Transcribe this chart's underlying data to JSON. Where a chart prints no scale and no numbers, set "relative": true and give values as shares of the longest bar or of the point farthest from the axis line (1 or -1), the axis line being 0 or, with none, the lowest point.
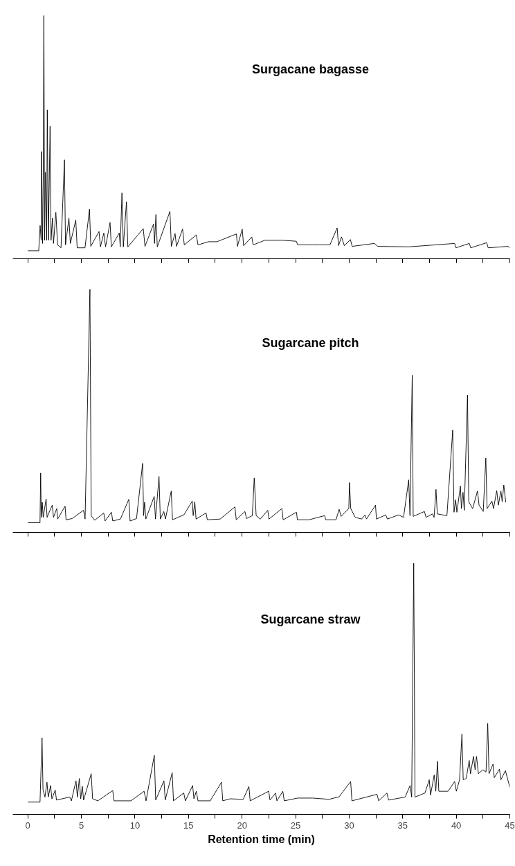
{
  "chart_data": [
    {
      "type": "line",
      "title": "Surgacane bagasse",
      "relative": true,
      "grid": false,
      "tick_labels": false,
      "marker": "none",
      "line_style": "solid",
      "xlim": [
        -1.4,
        45
      ],
      "xticks": [
        0,
        2.5,
        5,
        7.5,
        10,
        12.5,
        15,
        17.5,
        20,
        22.5,
        25,
        27.5,
        30,
        32.5,
        35,
        37.5,
        40,
        42.5,
        45
      ],
      "series": [
        {
          "color": "#000000",
          "x": [
            0,
            1.02,
            1.15,
            1.25,
            1.28,
            1.38,
            1.44,
            1.5,
            1.57,
            1.63,
            1.76,
            1.82,
            1.92,
            2.08,
            2.17,
            2.3,
            2.4,
            2.62,
            2.78,
            3.1,
            3.42,
            3.52,
            3.84,
            3.97,
            4.48,
            4.61,
            5.34,
            5.76,
            5.88,
            6.65,
            6.78,
            7.1,
            7.26,
            7.68,
            7.8,
            8.54,
            8.63,
            8.79,
            8.92,
            9.21,
            9.34,
            10.78,
            10.94,
            11.74,
            11.83,
            11.96,
            12.09,
            13.27,
            13.4,
            13.75,
            13.88,
            14.45,
            14.61,
            15.73,
            15.89,
            16.85,
            17.65,
            19.48,
            19.57,
            20.02,
            20.15,
            20.91,
            21.04,
            22.13,
            23.79,
            25.07,
            25.2,
            27.25,
            28.21,
            28.88,
            29.01,
            29.29,
            29.55,
            30.12,
            30.28,
            32.36,
            32.68,
            35.56,
            39.85,
            39.97,
            41.22,
            41.35,
            42.85,
            42.98,
            44.84,
            45.0
          ],
          "values": [
            0.033,
            0.033,
            0.137,
            0.076,
            0.441,
            0.063,
            0.332,
            1.0,
            0.076,
            0.356,
            0.076,
            0.612,
            0.076,
            0.545,
            0.076,
            0.167,
            0.063,
            0.191,
            0.057,
            0.045,
            0.407,
            0.057,
            0.167,
            0.063,
            0.159,
            0.045,
            0.045,
            0.204,
            0.051,
            0.112,
            0.049,
            0.106,
            0.049,
            0.149,
            0.049,
            0.106,
            0.049,
            0.271,
            0.049,
            0.234,
            0.049,
            0.124,
            0.051,
            0.143,
            0.063,
            0.182,
            0.049,
            0.195,
            0.051,
            0.104,
            0.051,
            0.122,
            0.057,
            0.098,
            0.057,
            0.07,
            0.07,
            0.102,
            0.051,
            0.122,
            0.054,
            0.09,
            0.057,
            0.076,
            0.076,
            0.072,
            0.057,
            0.057,
            0.057,
            0.127,
            0.054,
            0.09,
            0.054,
            0.079,
            0.051,
            0.063,
            0.051,
            0.049,
            0.063,
            0.045,
            0.063,
            0.045,
            0.066,
            0.045,
            0.051,
            0.045
          ]
        }
      ]
    },
    {
      "type": "line",
      "title": "Sugarcane pitch",
      "relative": true,
      "grid": false,
      "tick_labels": false,
      "marker": "none",
      "line_style": "solid",
      "xlim": [
        -1.4,
        45
      ],
      "xticks": [
        0,
        2.5,
        5,
        7.5,
        10,
        12.5,
        15,
        17.5,
        20,
        22.5,
        25,
        27.5,
        30,
        32.5,
        35,
        37.5,
        40,
        42.5,
        45
      ],
      "series": [
        {
          "color": "#000000",
          "x": [
            0,
            1.14,
            1.2,
            1.26,
            1.35,
            1.44,
            1.71,
            1.8,
            2.28,
            2.4,
            2.7,
            2.79,
            3.48,
            3.57,
            4.14,
            5.2,
            5.35,
            5.8,
            5.92,
            6.25,
            7.09,
            7.21,
            7.81,
            7.93,
            8.65,
            9.43,
            9.55,
            10.15,
            10.72,
            10.81,
            10.9,
            11.02,
            11.8,
            11.92,
            12.25,
            12.37,
            12.7,
            12.85,
            13.39,
            13.51,
            14.59,
            15.35,
            15.44,
            15.59,
            15.71,
            16.64,
            16.76,
            17.96,
            19.34,
            19.46,
            20.27,
            20.42,
            20.96,
            21.14,
            21.32,
            21.71,
            22.4,
            22.52,
            23.72,
            23.84,
            25.08,
            25.17,
            26.25,
            27.72,
            27.81,
            28.77,
            29.07,
            29.25,
            29.97,
            30.03,
            30.15,
            30.57,
            31.17,
            31.47,
            31.62,
            32.46,
            32.55,
            33.42,
            33.57,
            34.62,
            35.08,
            35.56,
            35.68,
            35.89,
            35.98,
            37.03,
            37.18,
            37.78,
            37.93,
            38.11,
            38.23,
            39.13,
            39.67,
            39.79,
            39.94,
            40.06,
            40.39,
            40.48,
            40.63,
            40.75,
            41.05,
            41.17,
            41.53,
            41.98,
            42.13,
            42.52,
            42.76,
            42.88,
            43.33,
            43.48,
            43.78,
            43.93,
            44.17,
            44.29,
            44.44,
            44.62
          ],
          "values": [
            0.04,
            0.04,
            0.244,
            0.062,
            0.124,
            0.062,
            0.138,
            0.062,
            0.112,
            0.062,
            0.098,
            0.055,
            0.108,
            0.052,
            0.057,
            0.091,
            0.055,
            1.0,
            0.069,
            0.05,
            0.08,
            0.047,
            0.083,
            0.047,
            0.055,
            0.136,
            0.047,
            0.057,
            0.284,
            0.069,
            0.124,
            0.055,
            0.148,
            0.055,
            0.23,
            0.055,
            0.086,
            0.055,
            0.17,
            0.052,
            0.073,
            0.129,
            0.069,
            0.126,
            0.055,
            0.08,
            0.052,
            0.055,
            0.105,
            0.052,
            0.086,
            0.057,
            0.069,
            0.224,
            0.069,
            0.055,
            0.091,
            0.055,
            0.098,
            0.052,
            0.083,
            0.052,
            0.052,
            0.069,
            0.052,
            0.052,
            0.095,
            0.066,
            0.098,
            0.205,
            0.098,
            0.062,
            0.055,
            0.072,
            0.055,
            0.112,
            0.055,
            0.072,
            0.055,
            0.072,
            0.062,
            0.216,
            0.069,
            0.647,
            0.066,
            0.086,
            0.062,
            0.076,
            0.062,
            0.177,
            0.076,
            0.069,
            0.421,
            0.083,
            0.134,
            0.083,
            0.191,
            0.098,
            0.165,
            0.091,
            0.565,
            0.126,
            0.098,
            0.17,
            0.112,
            0.086,
            0.306,
            0.098,
            0.129,
            0.098,
            0.172,
            0.112,
            0.17,
            0.126,
            0.195,
            0.124
          ]
        }
      ]
    },
    {
      "type": "line",
      "title": "Sugarcane straw",
      "xlabel": "Retention time (min)",
      "relative": true,
      "grid": false,
      "tick_labels": "x",
      "marker": "none",
      "line_style": "solid",
      "xlim": [
        -1.4,
        45
      ],
      "xticks": [
        0,
        {
          "value": 2.5,
          "label": null
        },
        5,
        {
          "value": 7.5,
          "label": null
        },
        10,
        {
          "value": 12.5,
          "label": null
        },
        15,
        {
          "value": 17.5,
          "label": null
        },
        20,
        {
          "value": 22.5,
          "label": null
        },
        25,
        {
          "value": 27.5,
          "label": null
        },
        30,
        {
          "value": 32.5,
          "label": null
        },
        35,
        {
          "value": 37.5,
          "label": null
        },
        40,
        {
          "value": 42.5,
          "label": null
        },
        45
      ],
      "series": [
        {
          "color": "#000000",
          "x": [
            0,
            1.14,
            1.33,
            1.42,
            1.6,
            1.79,
            1.91,
            2.13,
            2.25,
            2.56,
            2.68,
            3.92,
            4.07,
            4.5,
            4.63,
            4.81,
            4.94,
            5.09,
            5.21,
            5.92,
            6.05,
            6.54,
            7.93,
            8.05,
            9.62,
            10.86,
            11.04,
            11.81,
            11.94,
            12.71,
            12.83,
            13.48,
            13.6,
            14.56,
            14.71,
            15.39,
            15.51,
            15.73,
            15.89,
            17.03,
            18.08,
            18.2,
            18.88,
            20.11,
            20.64,
            20.76,
            22.49,
            22.61,
            23.13,
            23.26,
            23.81,
            23.94,
            25.2,
            26.59,
            28.13,
            29.06,
            30.14,
            30.26,
            32.6,
            32.76,
            33.53,
            33.68,
            35.23,
            35.69,
            35.84,
            36.03,
            36.15,
            37.08,
            37.48,
            37.6,
            37.94,
            38.09,
            38.25,
            38.37,
            39.24,
            39.85,
            40.01,
            40.31,
            40.53,
            40.65,
            40.93,
            41.21,
            41.33,
            41.61,
            41.76,
            41.89,
            42.07,
            42.47,
            42.78,
            42.94,
            43.06,
            43.43,
            43.55,
            44.03,
            44.17,
            44.59,
            45.0
          ],
          "values": [
            0.049,
            0.049,
            0.305,
            0.1,
            0.069,
            0.128,
            0.069,
            0.115,
            0.062,
            0.097,
            0.057,
            0.069,
            0.054,
            0.134,
            0.069,
            0.143,
            0.062,
            0.112,
            0.057,
            0.162,
            0.062,
            0.054,
            0.095,
            0.054,
            0.054,
            0.092,
            0.054,
            0.235,
            0.057,
            0.134,
            0.057,
            0.166,
            0.054,
            0.085,
            0.054,
            0.115,
            0.062,
            0.092,
            0.054,
            0.054,
            0.128,
            0.054,
            0.062,
            0.06,
            0.111,
            0.054,
            0.092,
            0.057,
            0.085,
            0.054,
            0.092,
            0.054,
            0.065,
            0.065,
            0.06,
            0.07,
            0.131,
            0.054,
            0.08,
            0.054,
            0.085,
            0.057,
            0.069,
            0.115,
            0.069,
            1.0,
            0.069,
            0.085,
            0.138,
            0.077,
            0.157,
            0.092,
            0.211,
            0.092,
            0.092,
            0.131,
            0.092,
            0.138,
            0.32,
            0.138,
            0.143,
            0.215,
            0.162,
            0.231,
            0.177,
            0.231,
            0.162,
            0.177,
            0.169,
            0.362,
            0.162,
            0.2,
            0.146,
            0.18,
            0.138,
            0.174,
            0.108
          ]
        }
      ]
    }
  ]
}
